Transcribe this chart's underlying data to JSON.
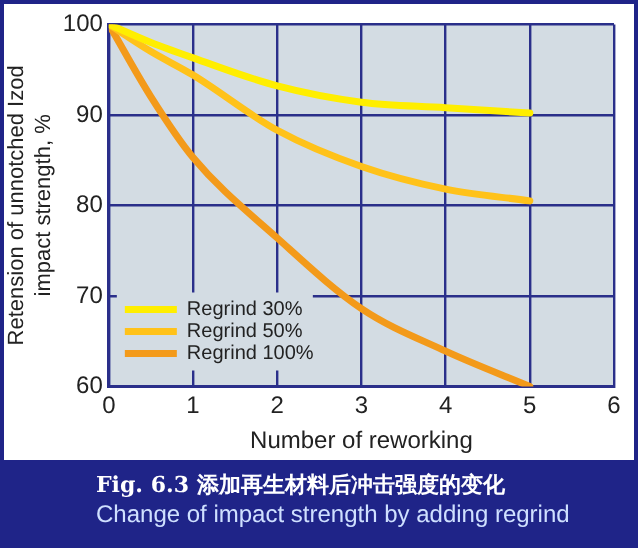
{
  "chart_data": {
    "type": "line",
    "xlabel": "Number of reworking",
    "ylabel": "Retension of unnotched Izod\nimpact strength, %",
    "x": [
      0,
      0.5,
      1,
      2,
      3,
      4,
      5
    ],
    "series": [
      {
        "name": "Regrind 30%",
        "color": "#ffee00",
        "values": [
          100,
          98,
          96.3,
          93.2,
          91.4,
          90.8,
          90.2
        ]
      },
      {
        "name": "Regrind 50%",
        "color": "#ffc21a",
        "values": [
          100,
          97,
          94.4,
          88.3,
          84.3,
          81.8,
          80.5
        ]
      },
      {
        "name": "Regrind 100%",
        "color": "#f39a1a",
        "values": [
          100,
          92,
          85.3,
          76.4,
          68.6,
          63.9,
          60
        ]
      }
    ],
    "xlim": [
      0,
      6
    ],
    "xticks": [
      0,
      1,
      2,
      3,
      4,
      5,
      6
    ],
    "ylim": [
      60,
      100
    ],
    "yticks": [
      60,
      70,
      80,
      90,
      100
    ],
    "grid": true,
    "legend": "bottom left",
    "marker": "none",
    "line_style": "solid",
    "annotations": [
      "Fig. 6.3 添加再生材料后冲击强度的变化",
      "Change of impact strength by adding regrind"
    ]
  }
}
